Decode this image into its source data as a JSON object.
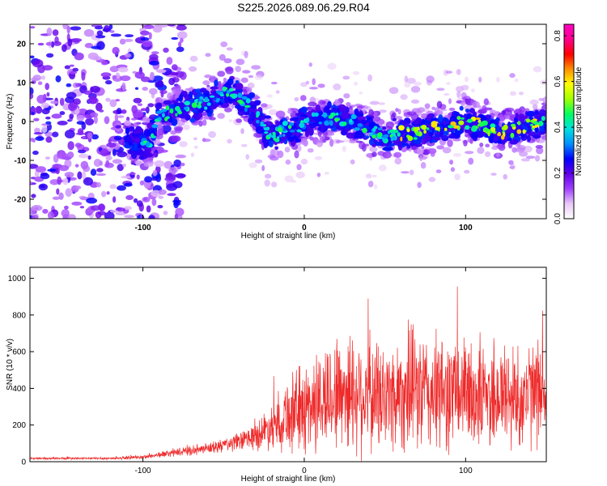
{
  "title": "S225.2026.089.06.29.R04",
  "chart_data": [
    {
      "type": "heatmap",
      "name": "spectrogram",
      "xlabel": "Height of straight line (km)",
      "ylabel": "Frequency (Hz)",
      "xlim": [
        -170,
        150
      ],
      "ylim": [
        -25,
        25
      ],
      "xticks": [
        -100,
        0,
        100
      ],
      "xtick_labels": [
        "-100",
        "0",
        "100"
      ],
      "yticks": [
        -20,
        -10,
        0,
        10,
        20
      ],
      "ytick_labels": [
        "-20",
        "-10",
        "0",
        "10",
        "20"
      ],
      "ridge_x": [
        -170,
        -150,
        -130,
        -110,
        -100,
        -95,
        -90,
        -80,
        -70,
        -60,
        -50,
        -45,
        -40,
        -35,
        -30,
        -25,
        -20,
        -15,
        -10,
        -5,
        0,
        5,
        10,
        20,
        30,
        40,
        50,
        60,
        70,
        80,
        90,
        100,
        110,
        120,
        130,
        140,
        150
      ],
      "ridge_freq": [
        -3,
        -5,
        -2,
        -4,
        -6,
        -5,
        1,
        3,
        4,
        5,
        7,
        8,
        6,
        4,
        2,
        -2,
        -4,
        -3,
        -1,
        -2,
        0,
        1,
        0,
        1,
        0,
        -2,
        -4,
        -3,
        -3,
        -2,
        -1,
        0,
        -1,
        -3,
        -2,
        -1,
        0
      ],
      "colorbar": {
        "label": "Normalized spectral amplitude",
        "range": [
          0,
          0.85
        ],
        "ticks": [
          0.0,
          0.2,
          0.4,
          0.6,
          0.8
        ],
        "tick_labels": [
          "0.0",
          "0.2",
          "0.4",
          "0.6",
          "0.8"
        ],
        "colors": [
          "#ffffff",
          "#e8c8f8",
          "#a040ff",
          "#6000e8",
          "#0000ff",
          "#0090ff",
          "#00e0e0",
          "#00ff60",
          "#a0ff00",
          "#ffff00",
          "#ff9000",
          "#ff0000",
          "#ff0090",
          "#ff00c0"
        ]
      }
    },
    {
      "type": "line",
      "name": "snr",
      "xlabel": "Height of straight line (km)",
      "ylabel": "SNR (10 * v/v)",
      "xlim": [
        -170,
        150
      ],
      "ylim": [
        0,
        1060
      ],
      "xticks": [
        -100,
        0,
        100
      ],
      "xtick_labels": [
        "-100",
        "0",
        "100"
      ],
      "yticks": [
        0,
        200,
        400,
        600,
        800,
        1000
      ],
      "ytick_labels": [
        "0",
        "200",
        "400",
        "600",
        "800",
        "1000"
      ],
      "color": "#ee2a2a",
      "envelope_x": [
        -170,
        -120,
        -100,
        -80,
        -60,
        -40,
        -30,
        -20,
        -10,
        0,
        10,
        20,
        30,
        40,
        50,
        60,
        70,
        80,
        90,
        100,
        110,
        120,
        130,
        140,
        150
      ],
      "envelope_mean": [
        18,
        18,
        25,
        50,
        70,
        110,
        140,
        200,
        260,
        290,
        330,
        380,
        390,
        360,
        350,
        380,
        390,
        360,
        380,
        370,
        360,
        370,
        350,
        360,
        400
      ],
      "envelope_spread": [
        8,
        8,
        12,
        25,
        35,
        60,
        90,
        150,
        250,
        300,
        340,
        380,
        400,
        380,
        360,
        380,
        400,
        380,
        380,
        360,
        360,
        380,
        350,
        340,
        320
      ]
    }
  ]
}
